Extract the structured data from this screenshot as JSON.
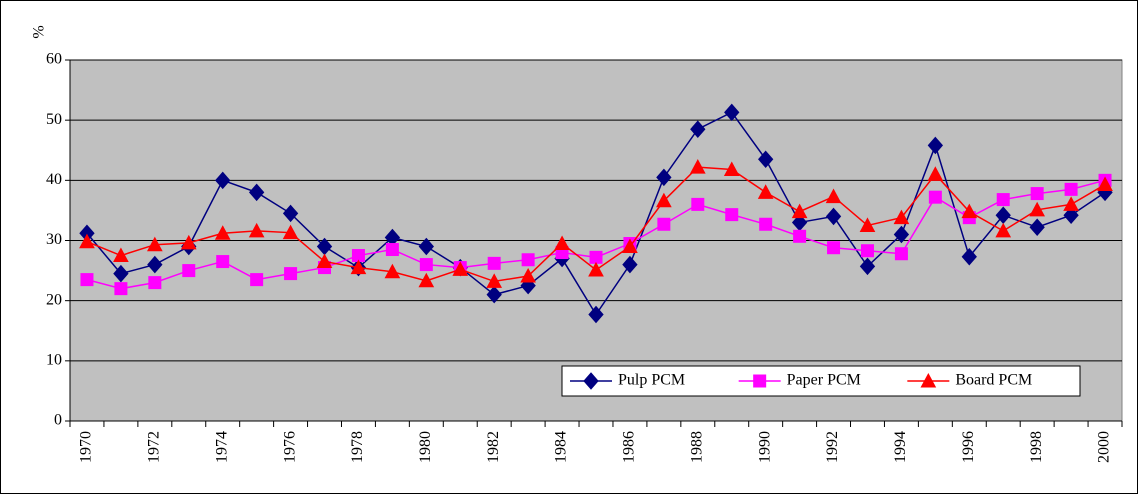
{
  "chart_data": {
    "type": "line",
    "y_label": "%",
    "categories": [
      "1970",
      null,
      "1972",
      null,
      "1974",
      null,
      "1976",
      null,
      "1978",
      null,
      "1980",
      null,
      "1982",
      null,
      "1984",
      null,
      "1986",
      null,
      "1988",
      null,
      "1990",
      null,
      "1992",
      null,
      "1994",
      null,
      "1996",
      null,
      "1998",
      null,
      "2000"
    ],
    "series": [
      {
        "name": "Pulp PCM",
        "color": "#000080",
        "marker": "diamond",
        "values": [
          31.2,
          24.5,
          26,
          29,
          40,
          38,
          34.5,
          29,
          25.5,
          30.5,
          29,
          25.5,
          21,
          22.5,
          27,
          17.7,
          26,
          40.5,
          48.5,
          51.3,
          43.5,
          33,
          34,
          25.7,
          31,
          45.8,
          27.3,
          34.2,
          32.2,
          34.2,
          38
        ]
      },
      {
        "name": "Paper PCM",
        "color": "#ff00ff",
        "marker": "square",
        "values": [
          23.5,
          22,
          23,
          25,
          26.5,
          23.5,
          24.5,
          25.5,
          27.5,
          28.5,
          26,
          25.5,
          26.2,
          26.8,
          28,
          27.2,
          29.5,
          32.7,
          36,
          34.3,
          32.7,
          30.7,
          28.8,
          28.3,
          27.8,
          37.2,
          33.8,
          36.8,
          37.8,
          38.5,
          40
        ]
      },
      {
        "name": "Board PCM",
        "color": "#ff0000",
        "marker": "triangle",
        "values": [
          29.8,
          27.5,
          29.3,
          29.6,
          31.2,
          31.6,
          31.3,
          26.5,
          25.5,
          24.8,
          23.3,
          25.2,
          23.2,
          24.1,
          29.5,
          25.1,
          29,
          36.6,
          42.2,
          41.8,
          38,
          34.8,
          37.3,
          32.5,
          33.8,
          41,
          34.8,
          31.6,
          35.1,
          36,
          39.3
        ]
      }
    ],
    "ylim": [
      0,
      60
    ],
    "yticks": [
      0,
      10,
      20,
      30,
      40,
      50,
      60
    ],
    "grid": true,
    "legend": "bottom-right"
  }
}
